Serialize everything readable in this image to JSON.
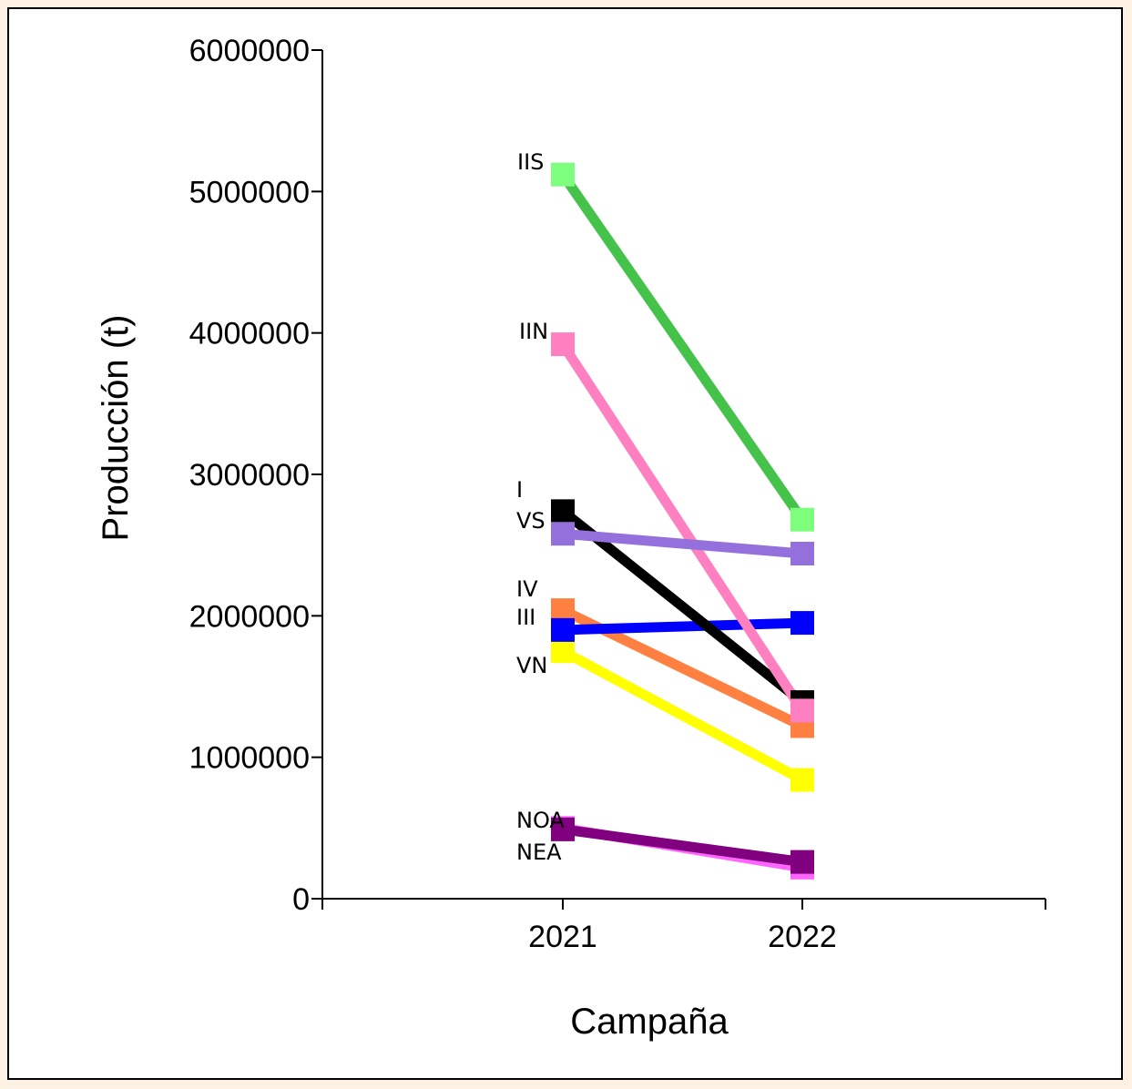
{
  "chart_data": {
    "type": "line",
    "x": [
      "2021",
      "2022"
    ],
    "xlabel": "Campaña",
    "ylabel": "Producción (t)",
    "ylim": [
      0,
      6000000
    ],
    "yticks": [
      "0",
      "1000000",
      "2000000",
      "3000000",
      "4000000",
      "5000000",
      "6000000"
    ],
    "grid": false,
    "legend": "labels beside 2021 points",
    "series": [
      {
        "name": "IIS",
        "values": [
          5120000,
          2680000
        ],
        "color": "#44c24a",
        "marker_color": "#7dff7d"
      },
      {
        "name": "IIN",
        "values": [
          3920000,
          1330000
        ],
        "color": "#ff80c0",
        "marker_color": "#ff80c0"
      },
      {
        "name": "I",
        "values": [
          2740000,
          1390000
        ],
        "color": "#000000",
        "marker_color": "#000000"
      },
      {
        "name": "VS",
        "values": [
          2580000,
          2440000
        ],
        "color": "#9370db",
        "marker_color": "#9370db"
      },
      {
        "name": "IV",
        "values": [
          2040000,
          1220000
        ],
        "color": "#ff8040",
        "marker_color": "#ff8040"
      },
      {
        "name": "III",
        "values": [
          1900000,
          1950000
        ],
        "color": "#0000ff",
        "marker_color": "#0000ff"
      },
      {
        "name": "VN",
        "values": [
          1750000,
          840000
        ],
        "color": "#ffff00",
        "marker_color": "#ffff00"
      },
      {
        "name": "NOA",
        "values": [
          500000,
          220000
        ],
        "color": "#ff66ff",
        "marker_color": "#ff66ff"
      },
      {
        "name": "NEA",
        "values": [
          490000,
          260000
        ],
        "color": "#800080",
        "marker_color": "#800080"
      }
    ]
  }
}
